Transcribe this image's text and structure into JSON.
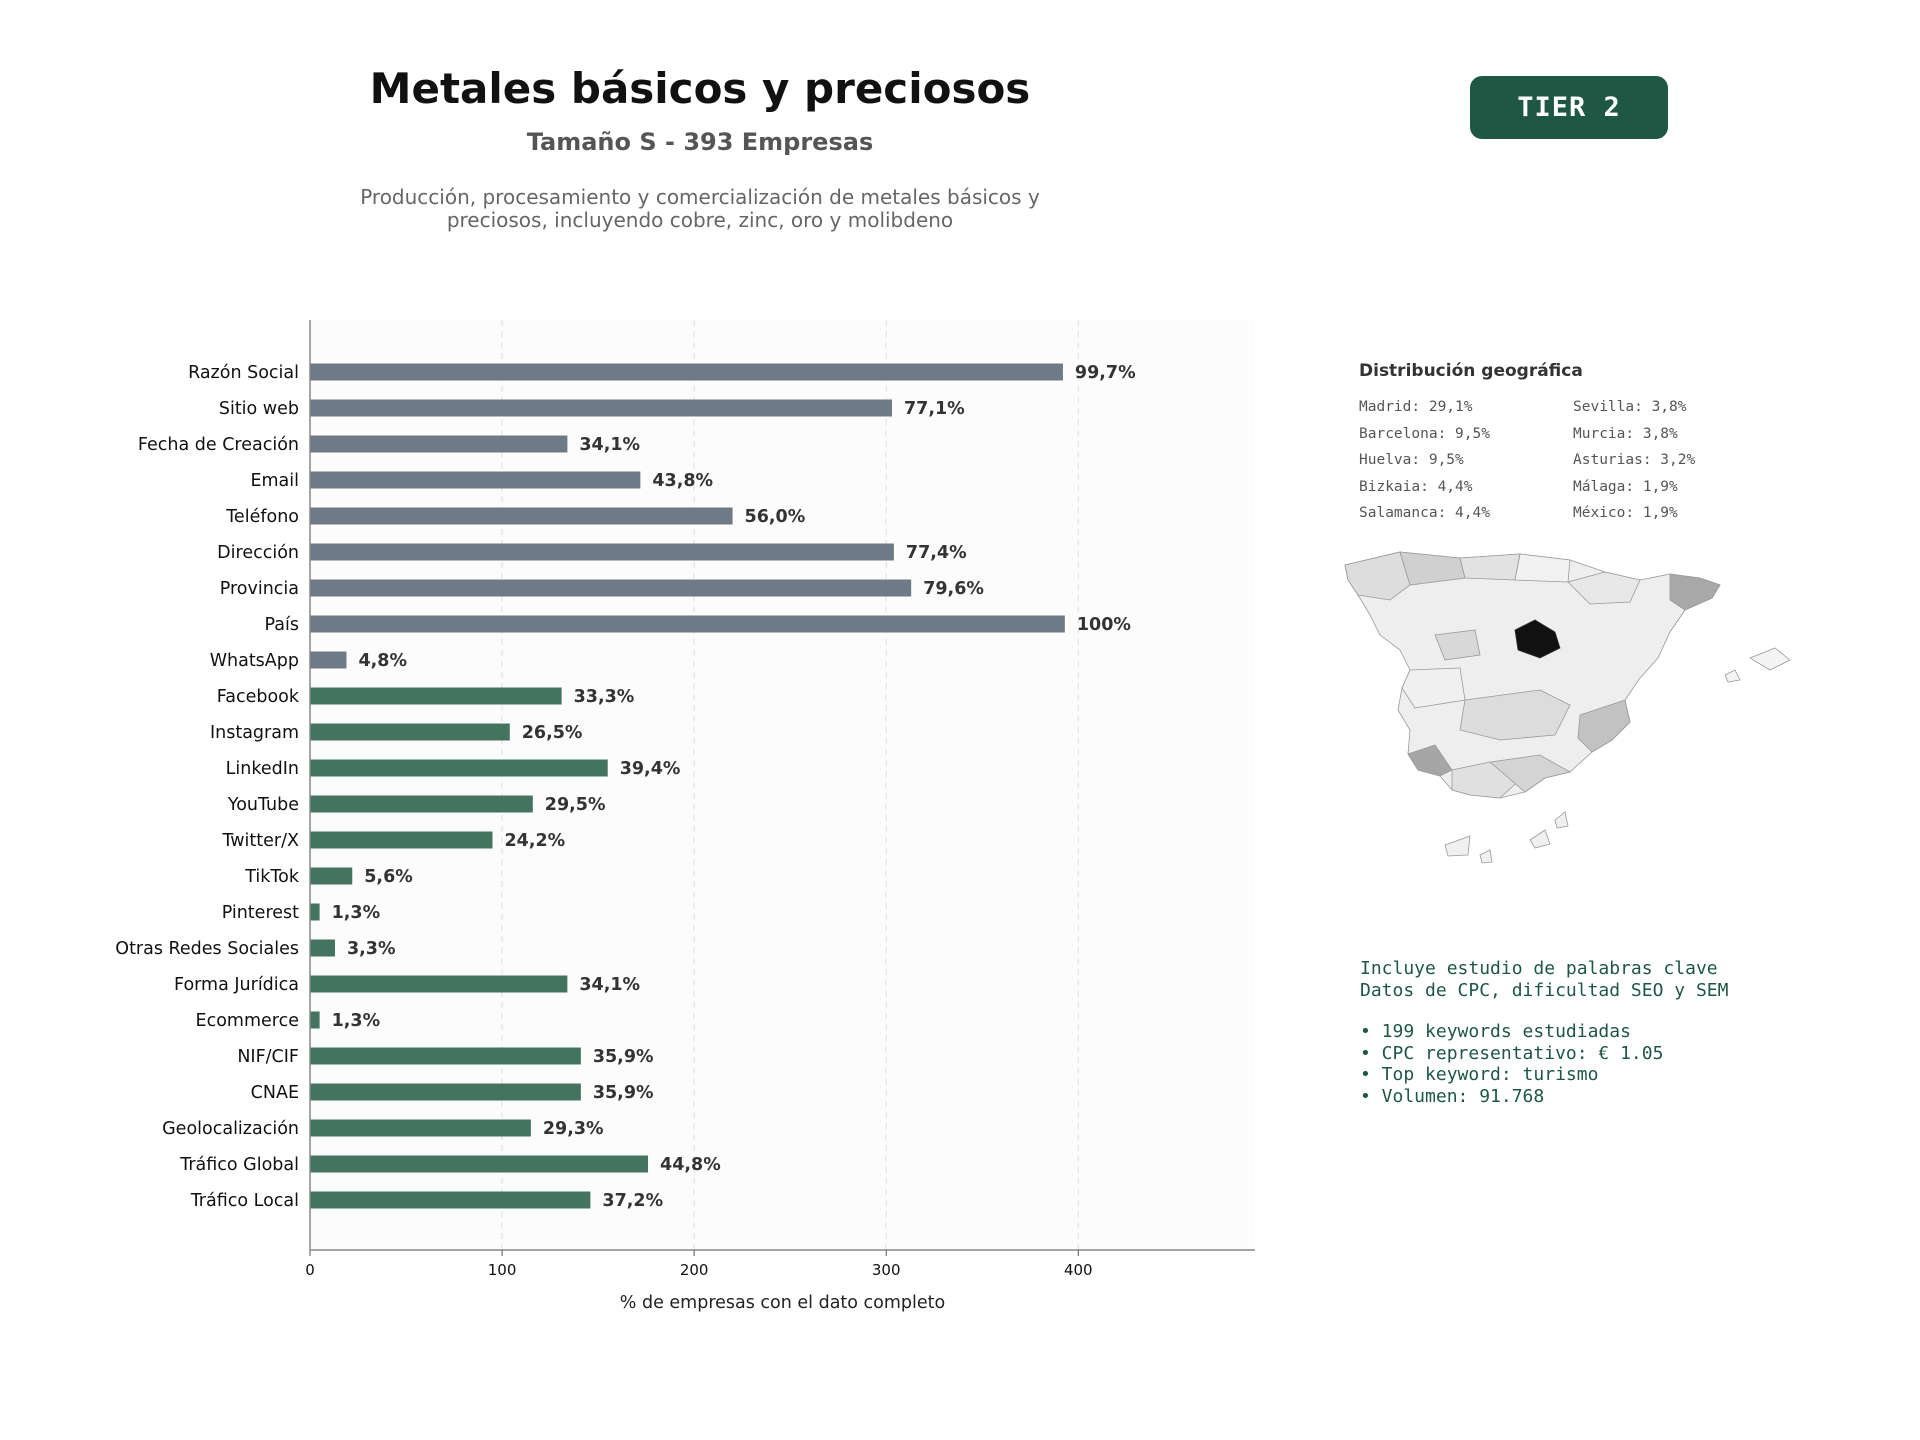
{
  "header": {
    "title": "Metales básicos y preciosos",
    "subtitle": "Tamaño S - 393 Empresas",
    "description": "Producción, procesamiento y comercialización de metales básicos y\npreciosos, incluyendo cobre, zinc, oro y molibdeno",
    "tier": "TIER 2"
  },
  "chart_data": {
    "type": "bar",
    "orientation": "horizontal",
    "categories": [
      "Razón Social",
      "Sitio web",
      "Fecha de Creación",
      "Email",
      "Teléfono",
      "Dirección",
      "Provincia",
      "País",
      "WhatsApp",
      "Facebook",
      "Instagram",
      "LinkedIn",
      "YouTube",
      "Twitter/X",
      "TikTok",
      "Pinterest",
      "Otras Redes Sociales",
      "Forma Jurídica",
      "Ecommerce",
      "NIF/CIF",
      "CNAE",
      "Geolocalización",
      "Tráfico Global",
      "Tráfico Local"
    ],
    "values": [
      392,
      303,
      134,
      172,
      220,
      304,
      313,
      393,
      19,
      131,
      104,
      155,
      116,
      95,
      22,
      5,
      13,
      134,
      5,
      141,
      141,
      115,
      176,
      146
    ],
    "labels": [
      "99,7%",
      "77,1%",
      "34,1%",
      "43,8%",
      "56,0%",
      "77,4%",
      "79,6%",
      "100%",
      "4,8%",
      "33,3%",
      "26,5%",
      "39,4%",
      "29,5%",
      "24,2%",
      "5,6%",
      "1,3%",
      "3,3%",
      "34,1%",
      "1,3%",
      "35,9%",
      "35,9%",
      "29,3%",
      "44,8%",
      "37,2%"
    ],
    "groups": [
      "basic",
      "basic",
      "basic",
      "basic",
      "basic",
      "basic",
      "basic",
      "basic",
      "basic",
      "social",
      "social",
      "social",
      "social",
      "social",
      "social",
      "social",
      "social",
      "social",
      "social",
      "social",
      "social",
      "social",
      "social",
      "social"
    ],
    "colors": {
      "basic": "#6e7a85",
      "social": "#44735f"
    },
    "xlabel": "% de empresas con el dato completo",
    "xticks": [
      0,
      100,
      200,
      300,
      400
    ],
    "xlim": [
      0,
      492
    ],
    "grid": true
  },
  "geo": {
    "title": "Distribución geográfica",
    "items": [
      "Madrid: 29,1%",
      "Barcelona: 9,5%",
      "Huelva: 9,5%",
      "Bizkaia: 4,4%",
      "Salamanca: 4,4%",
      "Sevilla: 3,8%",
      "Murcia: 3,8%",
      "Asturias: 3,2%",
      "Málaga: 1,9%",
      "México: 1,9%"
    ]
  },
  "keywords": {
    "intro": [
      "Incluye estudio de palabras clave",
      "Datos de CPC, dificultad SEO y SEM"
    ],
    "bullets": [
      "• 199 keywords estudiadas",
      "• CPC representativo: € 1.05",
      "• Top keyword: turismo",
      "• Volumen: 91.768"
    ]
  }
}
